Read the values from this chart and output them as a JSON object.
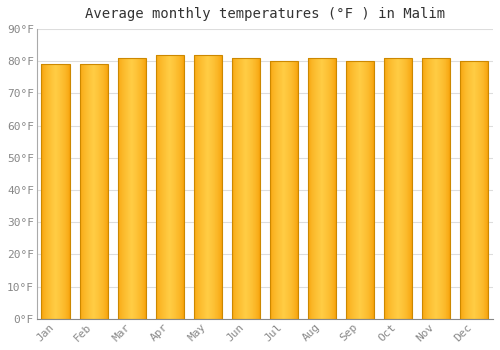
{
  "title": "Average monthly temperatures (°F ) in Malim",
  "months": [
    "Jan",
    "Feb",
    "Mar",
    "Apr",
    "May",
    "Jun",
    "Jul",
    "Aug",
    "Sep",
    "Oct",
    "Nov",
    "Dec"
  ],
  "values": [
    79,
    79,
    81,
    82,
    82,
    81,
    80,
    81,
    80,
    81,
    81,
    80
  ],
  "bar_color_center": "#FFCC44",
  "bar_color_edge": "#F59A00",
  "bar_edge_line": "#CC8800",
  "ylim": [
    0,
    90
  ],
  "yticks": [
    0,
    10,
    20,
    30,
    40,
    50,
    60,
    70,
    80,
    90
  ],
  "ytick_labels": [
    "0°F",
    "10°F",
    "20°F",
    "30°F",
    "40°F",
    "50°F",
    "60°F",
    "70°F",
    "80°F",
    "90°F"
  ],
  "background_color": "#FFFFFF",
  "plot_bg_color": "#FFFFFF",
  "grid_color": "#DDDDDD",
  "title_fontsize": 10,
  "tick_fontsize": 8,
  "bar_width": 0.75
}
